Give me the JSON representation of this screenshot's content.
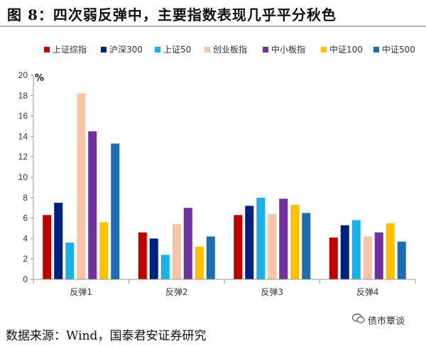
{
  "title": "图 8：四次弱反弹中，主要指数表现几乎平分秋色",
  "source": "数据来源：Wind，国泰君安证券研究",
  "watermark": "债市覃谈",
  "chart_data": {
    "type": "bar",
    "unit": "%",
    "categories": [
      "反弹1",
      "反弹2",
      "反弹3",
      "反弹4"
    ],
    "ylim": [
      0,
      20
    ],
    "yticks": [
      "0",
      "2",
      "4",
      "6",
      "8",
      "10",
      "12",
      "14",
      "16",
      "18",
      "20"
    ],
    "grid": false,
    "legend_position": "top",
    "series": [
      {
        "name": "上证综指",
        "color": "#c00000",
        "values": [
          6.3,
          4.6,
          6.3,
          4.1
        ]
      },
      {
        "name": "沪深300",
        "color": "#002080",
        "values": [
          7.5,
          4.0,
          7.2,
          5.3
        ]
      },
      {
        "name": "上证50",
        "color": "#1ab0e8",
        "values": [
          3.6,
          2.4,
          8.0,
          5.8
        ]
      },
      {
        "name": "创业板指",
        "color": "#f7c4a8",
        "values": [
          18.2,
          5.4,
          6.4,
          4.2
        ]
      },
      {
        "name": "中小板指",
        "color": "#7030a0",
        "values": [
          14.5,
          7.0,
          7.9,
          4.6
        ]
      },
      {
        "name": "中证100",
        "color": "#ffc000",
        "values": [
          5.6,
          3.2,
          7.3,
          5.5
        ]
      },
      {
        "name": "中证500",
        "color": "#1f6cb0",
        "values": [
          13.3,
          4.2,
          6.5,
          3.7
        ]
      }
    ]
  }
}
